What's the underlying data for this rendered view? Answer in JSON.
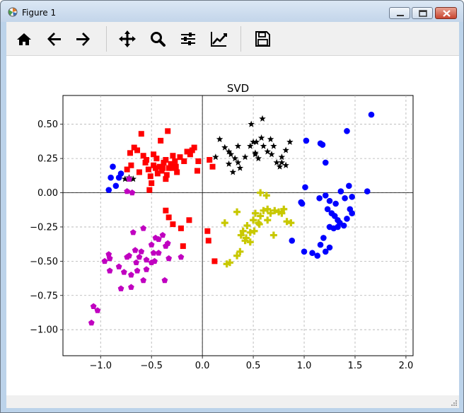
{
  "window": {
    "title": "Figure 1"
  },
  "toolbar": {
    "tools": [
      {
        "name": "home-icon"
      },
      {
        "name": "back-arrow-icon"
      },
      {
        "name": "forward-arrow-icon"
      },
      {
        "name": "pan-move-icon"
      },
      {
        "name": "zoom-magnifier-icon"
      },
      {
        "name": "configure-subplots-icon"
      },
      {
        "name": "edit-axis-line-chart-icon"
      },
      {
        "name": "save-floppy-icon"
      }
    ]
  },
  "chart_data": {
    "type": "scatter",
    "title": "SVD",
    "xlabel": "",
    "ylabel": "",
    "xlim": [
      -1.37,
      2.07
    ],
    "ylim": [
      -1.19,
      0.71
    ],
    "xticks": [
      -1.0,
      -0.5,
      0.0,
      0.5,
      1.0,
      1.5,
      2.0
    ],
    "xtick_labels": [
      "−1.0",
      "−0.5",
      "0.0",
      "0.5",
      "1.0",
      "1.5",
      "2.0"
    ],
    "yticks": [
      0.5,
      0.25,
      0.0,
      -0.25,
      -0.5,
      -0.75,
      -1.0
    ],
    "ytick_labels": [
      "0.50",
      "0.25",
      "0.00",
      "−0.25",
      "−0.50",
      "−0.75",
      "−1.00"
    ],
    "grid": true,
    "zero_lines": true,
    "series": [
      {
        "marker": "circle",
        "color": "#0000ff",
        "points": [
          [
            -0.92,
            0.02
          ],
          [
            -0.9,
            0.11
          ],
          [
            -0.88,
            0.19
          ],
          [
            -0.85,
            0.05
          ],
          [
            -0.82,
            0.11
          ],
          [
            -0.8,
            0.14
          ],
          [
            1.02,
            0.38
          ],
          [
            1.16,
            0.36
          ],
          [
            1.18,
            0.35
          ],
          [
            1.21,
            0.22
          ],
          [
            1.42,
            0.45
          ],
          [
            1.66,
            0.57
          ],
          [
            1.01,
            0.04
          ],
          [
            1.15,
            -0.04
          ],
          [
            1.21,
            -0.02
          ],
          [
            1.25,
            -0.06
          ],
          [
            1.31,
            -0.08
          ],
          [
            1.36,
            0.01
          ],
          [
            1.4,
            -0.04
          ],
          [
            1.44,
            0.05
          ],
          [
            1.47,
            -0.03
          ],
          [
            1.62,
            0.01
          ],
          [
            0.98,
            -0.08
          ],
          [
            0.97,
            -0.07
          ],
          [
            1.23,
            -0.12
          ],
          [
            1.27,
            -0.15
          ],
          [
            1.3,
            -0.17
          ],
          [
            1.33,
            -0.2
          ],
          [
            1.35,
            -0.22
          ],
          [
            1.29,
            -0.26
          ],
          [
            1.25,
            -0.25
          ],
          [
            1.33,
            -0.25
          ],
          [
            1.39,
            -0.24
          ],
          [
            1.42,
            -0.19
          ],
          [
            1.45,
            -0.12
          ],
          [
            1.47,
            -0.15
          ],
          [
            1.19,
            -0.33
          ],
          [
            0.88,
            -0.35
          ],
          [
            1.0,
            -0.43
          ],
          [
            1.08,
            -0.44
          ],
          [
            1.13,
            -0.46
          ],
          [
            1.16,
            -0.38
          ],
          [
            1.21,
            -0.43
          ],
          [
            1.25,
            -0.4
          ]
        ]
      },
      {
        "marker": "square",
        "color": "#ff0000",
        "points": [
          [
            -0.74,
            0.17
          ],
          [
            -0.7,
            0.2
          ],
          [
            -0.58,
            0.27
          ],
          [
            -0.55,
            0.24
          ],
          [
            -0.53,
            0.17
          ],
          [
            -0.51,
            0.12
          ],
          [
            -0.48,
            0.2
          ],
          [
            -0.45,
            0.25
          ],
          [
            -0.42,
            0.19
          ],
          [
            -0.4,
            0.16
          ],
          [
            -0.38,
            0.22
          ],
          [
            -0.35,
            0.13
          ],
          [
            -0.33,
            0.18
          ],
          [
            -0.31,
            0.21
          ],
          [
            -0.29,
            0.27
          ],
          [
            -0.27,
            0.23
          ],
          [
            -0.25,
            0.15
          ],
          [
            -0.22,
            0.26
          ],
          [
            -0.18,
            0.23
          ],
          [
            -0.15,
            0.3
          ],
          [
            -0.12,
            0.28
          ],
          [
            -0.1,
            0.31
          ],
          [
            -0.08,
            0.33
          ],
          [
            -0.6,
            0.43
          ],
          [
            -0.64,
            0.31
          ],
          [
            -0.67,
            0.33
          ],
          [
            -0.71,
            0.29
          ],
          [
            -0.34,
            0.45
          ],
          [
            -0.41,
            0.38
          ],
          [
            -0.48,
            0.28
          ],
          [
            -0.62,
            0.15
          ],
          [
            -0.56,
            0.22
          ],
          [
            -0.5,
            0.07
          ],
          [
            -0.46,
            0.18
          ],
          [
            -0.44,
            0.14
          ],
          [
            -0.39,
            0.18
          ],
          [
            -0.36,
            0.1
          ],
          [
            -0.3,
            0.18
          ],
          [
            -0.26,
            0.19
          ],
          [
            -0.36,
            0.24
          ],
          [
            -0.05,
            0.16
          ],
          [
            -0.04,
            0.23
          ],
          [
            0.1,
            0.19
          ],
          [
            0.07,
            0.24
          ],
          [
            -0.52,
            0.02
          ],
          [
            -0.36,
            -0.13
          ],
          [
            -0.33,
            -0.18
          ],
          [
            -0.29,
            -0.23
          ],
          [
            -0.21,
            -0.26
          ],
          [
            -0.13,
            -0.2
          ],
          [
            -0.19,
            -0.39
          ],
          [
            0.05,
            -0.28
          ],
          [
            0.06,
            -0.35
          ],
          [
            0.12,
            -0.5
          ]
        ]
      },
      {
        "marker": "star",
        "color": "#000000",
        "points": [
          [
            -0.76,
            0.1
          ],
          [
            -0.72,
            0.11
          ],
          [
            0.13,
            0.26
          ],
          [
            0.17,
            0.39
          ],
          [
            0.22,
            0.33
          ],
          [
            0.26,
            0.3
          ],
          [
            0.28,
            0.28
          ],
          [
            0.32,
            0.25
          ],
          [
            0.37,
            0.18
          ],
          [
            0.42,
            0.26
          ],
          [
            0.47,
            0.34
          ],
          [
            0.5,
            0.37
          ],
          [
            0.52,
            0.29
          ],
          [
            0.55,
            0.25
          ],
          [
            0.58,
            0.4
          ],
          [
            0.6,
            0.34
          ],
          [
            0.64,
            0.3
          ],
          [
            0.67,
            0.39
          ],
          [
            0.7,
            0.34
          ],
          [
            0.73,
            0.22
          ],
          [
            0.76,
            0.19
          ],
          [
            0.78,
            0.26
          ],
          [
            0.82,
            0.31
          ],
          [
            0.86,
            0.37
          ],
          [
            0.48,
            0.5
          ],
          [
            0.59,
            0.54
          ],
          [
            0.68,
            0.28
          ],
          [
            0.35,
            0.34
          ],
          [
            0.26,
            0.21
          ],
          [
            0.3,
            0.15
          ],
          [
            0.35,
            0.22
          ],
          [
            0.52,
            0.28
          ],
          [
            0.78,
            0.22
          ],
          [
            0.82,
            0.2
          ],
          [
            -0.68,
            0.1
          ],
          [
            0.53,
            0.37
          ]
        ]
      },
      {
        "marker": "plus",
        "color": "#c8c800",
        "points": [
          [
            0.22,
            -0.22
          ],
          [
            0.34,
            -0.14
          ],
          [
            0.4,
            -0.28
          ],
          [
            0.38,
            -0.31
          ],
          [
            0.43,
            -0.33
          ],
          [
            0.47,
            -0.29
          ],
          [
            0.5,
            -0.2
          ],
          [
            0.52,
            -0.15
          ],
          [
            0.55,
            -0.22
          ],
          [
            0.57,
            -0.17
          ],
          [
            0.6,
            -0.13
          ],
          [
            0.64,
            -0.12
          ],
          [
            0.67,
            -0.15
          ],
          [
            0.71,
            -0.13
          ],
          [
            0.75,
            -0.14
          ],
          [
            0.78,
            -0.15
          ],
          [
            0.8,
            -0.12
          ],
          [
            0.83,
            -0.21
          ],
          [
            0.87,
            -0.22
          ],
          [
            0.7,
            -0.31
          ],
          [
            0.64,
            -0.2
          ],
          [
            0.56,
            -0.23
          ],
          [
            0.51,
            -0.28
          ],
          [
            0.44,
            -0.24
          ],
          [
            0.37,
            -0.43
          ],
          [
            0.34,
            -0.46
          ],
          [
            0.27,
            -0.51
          ],
          [
            0.24,
            -0.52
          ],
          [
            0.57,
            0.0
          ],
          [
            0.63,
            -0.02
          ],
          [
            0.42,
            -0.35
          ],
          [
            0.47,
            -0.36
          ]
        ]
      },
      {
        "marker": "pentagon",
        "color": "#c000c0",
        "points": [
          [
            -1.09,
            -0.95
          ],
          [
            -1.07,
            -0.83
          ],
          [
            -1.03,
            -0.86
          ],
          [
            -0.96,
            -0.5
          ],
          [
            -0.92,
            -0.45
          ],
          [
            -0.91,
            -0.48
          ],
          [
            -0.91,
            -0.57
          ],
          [
            -0.82,
            -0.54
          ],
          [
            -0.8,
            -0.7
          ],
          [
            -0.77,
            -0.58
          ],
          [
            -0.74,
            -0.47
          ],
          [
            -0.72,
            -0.46
          ],
          [
            -0.68,
            -0.29
          ],
          [
            -0.66,
            -0.42
          ],
          [
            -0.65,
            -0.51
          ],
          [
            -0.64,
            -0.57
          ],
          [
            -0.62,
            -0.47
          ],
          [
            -0.6,
            -0.43
          ],
          [
            -0.58,
            -0.64
          ],
          [
            -0.55,
            -0.49
          ],
          [
            -0.5,
            -0.38
          ],
          [
            -0.48,
            -0.44
          ],
          [
            -0.46,
            -0.33
          ],
          [
            -0.43,
            -0.34
          ],
          [
            -0.39,
            -0.31
          ],
          [
            -0.36,
            -0.39
          ],
          [
            -0.34,
            -0.37
          ],
          [
            -0.33,
            -0.48
          ],
          [
            -0.37,
            -0.64
          ],
          [
            -0.5,
            -0.51
          ],
          [
            -0.58,
            -0.26
          ],
          [
            -0.55,
            -0.56
          ],
          [
            -0.7,
            -0.6
          ],
          [
            -0.7,
            -0.69
          ],
          [
            -0.74,
            0.01
          ],
          [
            -0.69,
            0.0
          ],
          [
            -0.72,
            0.1
          ],
          [
            -0.47,
            -0.5
          ],
          [
            -0.43,
            -0.44
          ],
          [
            -0.21,
            -0.47
          ]
        ]
      }
    ]
  }
}
